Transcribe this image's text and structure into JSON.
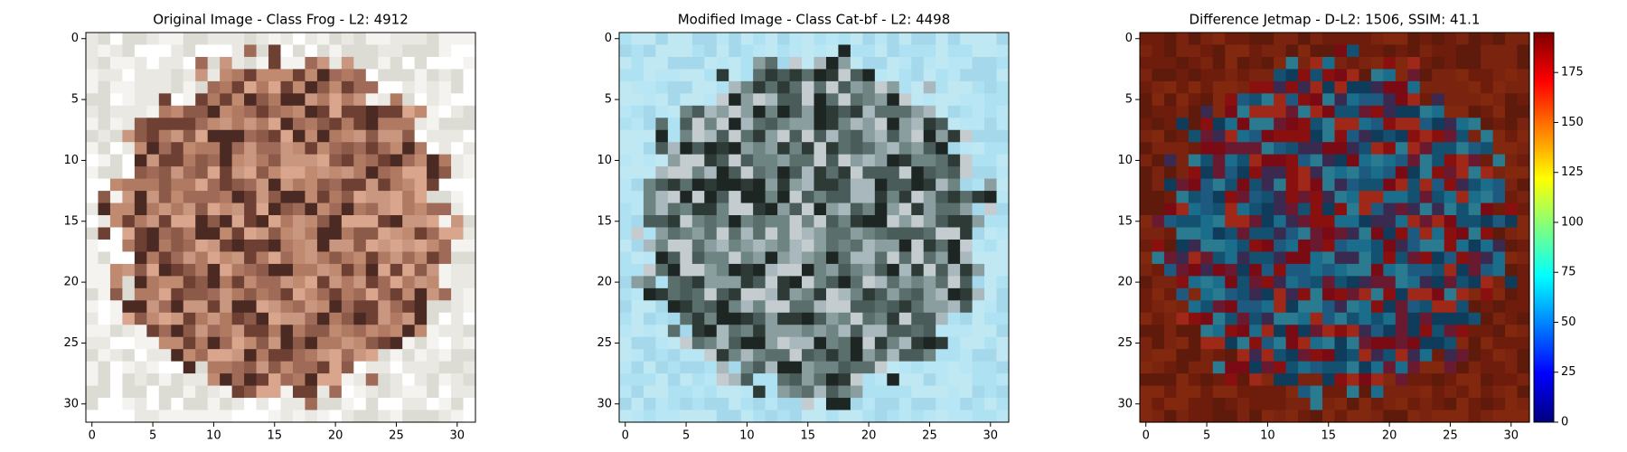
{
  "chart_data": [
    {
      "type": "image",
      "title": "Original Image - Class Frog - L2: 4912",
      "title_color": "#000000",
      "xlim": [
        -0.5,
        31.5
      ],
      "ylim": [
        31.5,
        -0.5
      ],
      "xticks": [
        0,
        5,
        10,
        15,
        20,
        25,
        30
      ],
      "yticks": [
        0,
        5,
        10,
        15,
        20,
        25,
        30
      ]
    },
    {
      "type": "image",
      "title": "Modified Image - Class Cat-bf - L2: 4498",
      "title_color": "#ff0000",
      "xlim": [
        -0.5,
        31.5
      ],
      "ylim": [
        31.5,
        -0.5
      ],
      "xticks": [
        0,
        5,
        10,
        15,
        20,
        25,
        30
      ],
      "yticks": [
        0,
        5,
        10,
        15,
        20,
        25,
        30
      ]
    },
    {
      "type": "image",
      "title": "Difference Jetmap - D-L2: 1506, SSIM: 41.1",
      "title_color": "#000000",
      "xlim": [
        -0.5,
        31.5
      ],
      "ylim": [
        31.5,
        -0.5
      ],
      "xticks": [
        0,
        5,
        10,
        15,
        20,
        25,
        30
      ],
      "yticks": [
        0,
        5,
        10,
        15,
        20,
        25,
        30
      ],
      "colorbar": {
        "colormap": "jet",
        "lim": [
          0,
          195
        ],
        "ticks": [
          0,
          25,
          50,
          75,
          100,
          125,
          150,
          175
        ]
      }
    }
  ]
}
